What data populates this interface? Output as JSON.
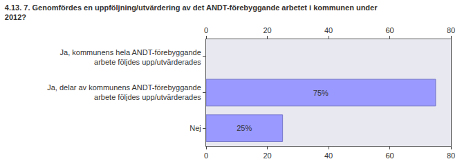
{
  "chart_data": {
    "type": "bar",
    "orientation": "horizontal",
    "title": "4.13. 7. Genomfördes en uppföljning/utvärdering av det ANDT-förebyggande arbetet i kommunen under 2012?",
    "categories": [
      "Ja, kommunens hela ANDT-förebyggande arbete följdes upp/utvärderades",
      "Ja, delar av kommunens ANDT-förebyggande arbete följdes upp/utvärderades",
      "Nej"
    ],
    "values": [
      null,
      75,
      25
    ],
    "value_labels": [
      null,
      "75%",
      "25%"
    ],
    "data_labels": true,
    "color": "#9999ff",
    "xlim": [
      0,
      80
    ],
    "xticks": [
      0,
      20,
      40,
      60,
      80
    ],
    "grid": false
  }
}
